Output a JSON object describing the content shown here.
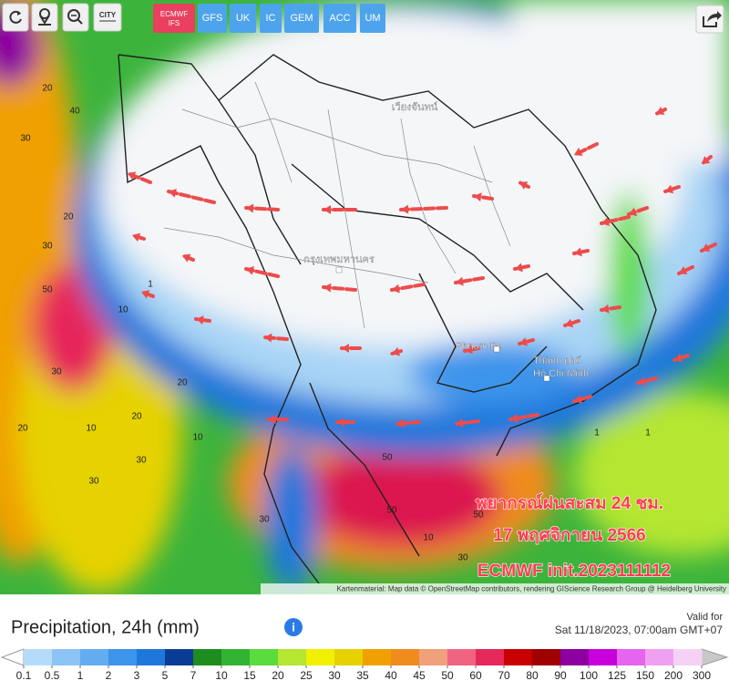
{
  "toolbar": {
    "city": "CITY",
    "models": [
      "ECMWF IFS",
      "GFS",
      "UK",
      "IC",
      "GEM",
      "ACC",
      "UM"
    ]
  },
  "map": {
    "places": [
      "Phnom Pe",
      "Thành phố",
      "Hồ Chí Minh",
      "กรุงเทพมหานคร",
      "เวียงจันทน์"
    ],
    "contour_labels": [
      "20",
      "40",
      "30",
      "20",
      "30",
      "50",
      "1",
      "10",
      "30",
      "20",
      "10",
      "30",
      "20",
      "30",
      "10",
      "30",
      "50",
      "50",
      "30",
      "10",
      "1",
      "1",
      "20",
      "50"
    ],
    "overlay": [
      "พยากรณ์ฝนสะสม 24 ชม.",
      "17 พฤศจิกายน 2566",
      "ECMWF init.2023111112"
    ],
    "attribution": "Kartenmaterial: Map data © OpenStreetMap contributors, rendering GIScience Research Group @ Heidelberg University"
  },
  "legend": {
    "title": "Precipitation, 24h (mm)",
    "valid_label": "Valid for",
    "valid_time": "Sat 11/18/2023, 07:00am GMT+07",
    "ticks": [
      0.1,
      0.5,
      1,
      2,
      3,
      5,
      7,
      10,
      15,
      20,
      25,
      30,
      35,
      40,
      45,
      50,
      60,
      70,
      80,
      90,
      100,
      125,
      150,
      200,
      300
    ],
    "colors": [
      "#b4dcfa",
      "#8cc4f5",
      "#64acf0",
      "#3c94eb",
      "#1e78dc",
      "#0a3c96",
      "#1e8c1e",
      "#32b432",
      "#5adc3c",
      "#b4e632",
      "#f0f000",
      "#e6d200",
      "#f0a000",
      "#f08c1e",
      "#f0a07a",
      "#f06482",
      "#e6285a",
      "#c80000",
      "#a00000",
      "#8c00a0",
      "#c800dc",
      "#e664f0",
      "#f0a0f0",
      "#f5d2f5"
    ],
    "low_color": "#ffffff",
    "high_color": "#c8c8c8"
  }
}
